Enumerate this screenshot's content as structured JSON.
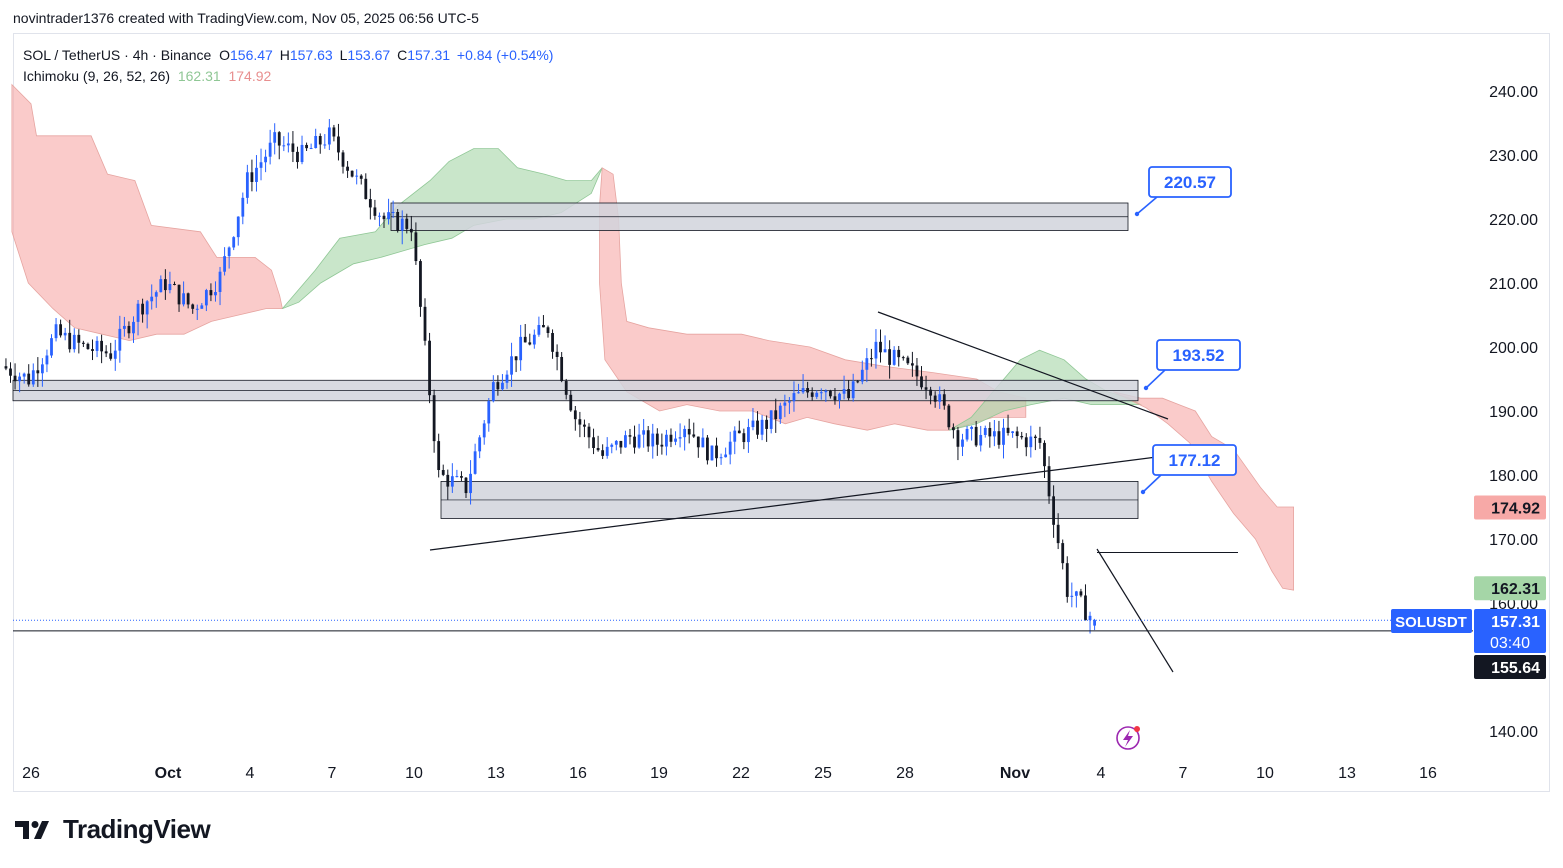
{
  "header": {
    "credit": "novintrader1376 created with TradingView.com, Nov 05, 2025 06:56 UTC-5"
  },
  "legend": {
    "symbol": "SOL / TetherUS · 4h · Binance",
    "o_label": "O",
    "o_value": "156.47",
    "h_label": "H",
    "h_value": "157.63",
    "l_label": "L",
    "l_value": "153.67",
    "c_label": "C",
    "c_value": "157.31",
    "change": "+0.84 (+0.54%)",
    "indicator": "Ichimoku (9, 26, 52, 26)",
    "ind_val1": "162.31",
    "ind_val2": "174.92"
  },
  "price_axis": {
    "ticks": [
      "240.00",
      "230.00",
      "220.00",
      "210.00",
      "200.00",
      "190.00",
      "180.00",
      "170.00",
      "160.00",
      "140.00"
    ],
    "badges": {
      "span_b": "174.92",
      "span_a": "162.31",
      "symbol": "SOLUSDT",
      "last_price": "157.31",
      "countdown": "03:40",
      "crosshair_price": "155.64"
    }
  },
  "time_axis": {
    "ticks": [
      "26",
      "Oct",
      "4",
      "7",
      "10",
      "13",
      "16",
      "19",
      "22",
      "25",
      "28",
      "Nov",
      "4",
      "7",
      "10",
      "13",
      "16"
    ]
  },
  "annotations": {
    "callout_220": "220.57",
    "callout_193": "193.52",
    "callout_177": "177.12"
  },
  "brand": {
    "name": "TradingView"
  },
  "colors": {
    "up": "#2962ff",
    "down": "#131722",
    "cloud_bull": "#a5d6a7",
    "cloud_bear": "#f7a9a7",
    "zone_fill": "#d1d4dc",
    "callout": "#2962ff",
    "badge_red": "#f7a9a7",
    "badge_green": "#a5d6a7",
    "badge_blue": "#2962ff",
    "badge_dark": "#131722"
  },
  "chart_data": {
    "type": "candlestick",
    "title": "SOL / TetherUS · 4h · Binance",
    "ylim": [
      136,
      248
    ],
    "y_ticks": [
      240,
      230,
      220,
      210,
      200,
      190,
      180,
      170,
      160,
      140
    ],
    "x_ticks": [
      "26",
      "Oct",
      "4",
      "7",
      "10",
      "13",
      "16",
      "19",
      "22",
      "25",
      "28",
      "Nov",
      "4",
      "7",
      "10",
      "13",
      "16"
    ],
    "price_path": [
      {
        "date": "Sep 25",
        "close": 197
      },
      {
        "date": "Sep 26",
        "close": 195
      },
      {
        "date": "Sep 27",
        "close": 202
      },
      {
        "date": "Sep 28",
        "close": 200
      },
      {
        "date": "Sep 29",
        "close": 199
      },
      {
        "date": "Sep 30",
        "close": 206
      },
      {
        "date": "Oct 1",
        "close": 210
      },
      {
        "date": "Oct 2",
        "close": 206
      },
      {
        "date": "Oct 3",
        "close": 211
      },
      {
        "date": "Oct 4",
        "close": 226
      },
      {
        "date": "Oct 5",
        "close": 232
      },
      {
        "date": "Oct 6",
        "close": 230
      },
      {
        "date": "Oct 7",
        "close": 233
      },
      {
        "date": "Oct 8",
        "close": 226
      },
      {
        "date": "Oct 9",
        "close": 220
      },
      {
        "date": "Oct 10",
        "close": 219
      },
      {
        "date": "Oct 11",
        "close": 180
      },
      {
        "date": "Oct 12",
        "close": 178
      },
      {
        "date": "Oct 13",
        "close": 194
      },
      {
        "date": "Oct 14",
        "close": 200
      },
      {
        "date": "Oct 15",
        "close": 203
      },
      {
        "date": "Oct 16",
        "close": 189
      },
      {
        "date": "Oct 17",
        "close": 183
      },
      {
        "date": "Oct 18",
        "close": 186
      },
      {
        "date": "Oct 19",
        "close": 185
      },
      {
        "date": "Oct 20",
        "close": 188
      },
      {
        "date": "Oct 21",
        "close": 183
      },
      {
        "date": "Oct 22",
        "close": 186
      },
      {
        "date": "Oct 23",
        "close": 188
      },
      {
        "date": "Oct 24",
        "close": 192
      },
      {
        "date": "Oct 25",
        "close": 194
      },
      {
        "date": "Oct 26",
        "close": 192
      },
      {
        "date": "Oct 27",
        "close": 200
      },
      {
        "date": "Oct 28",
        "close": 197
      },
      {
        "date": "Oct 29",
        "close": 194
      },
      {
        "date": "Oct 30",
        "close": 186
      },
      {
        "date": "Oct 31",
        "close": 186
      },
      {
        "date": "Nov 1",
        "close": 186
      },
      {
        "date": "Nov 2",
        "close": 185
      },
      {
        "date": "Nov 3",
        "close": 162
      },
      {
        "date": "Nov 4",
        "close": 157.31
      }
    ],
    "last_ohlc": {
      "open": 156.47,
      "high": 157.63,
      "low": 153.67,
      "close": 157.31
    },
    "ichimoku": {
      "params": "9, 26, 52, 26",
      "span_a": 162.31,
      "span_b": 174.92
    },
    "zones": [
      {
        "top": 222.5,
        "bottom": 218.2,
        "label": "220.57"
      },
      {
        "top": 194.8,
        "bottom": 191.6,
        "label": "193.52"
      },
      {
        "top": 179.0,
        "bottom": 173.2,
        "label": "177.12"
      }
    ],
    "horizontal_lines": [
      155.64,
      167.9
    ]
  }
}
